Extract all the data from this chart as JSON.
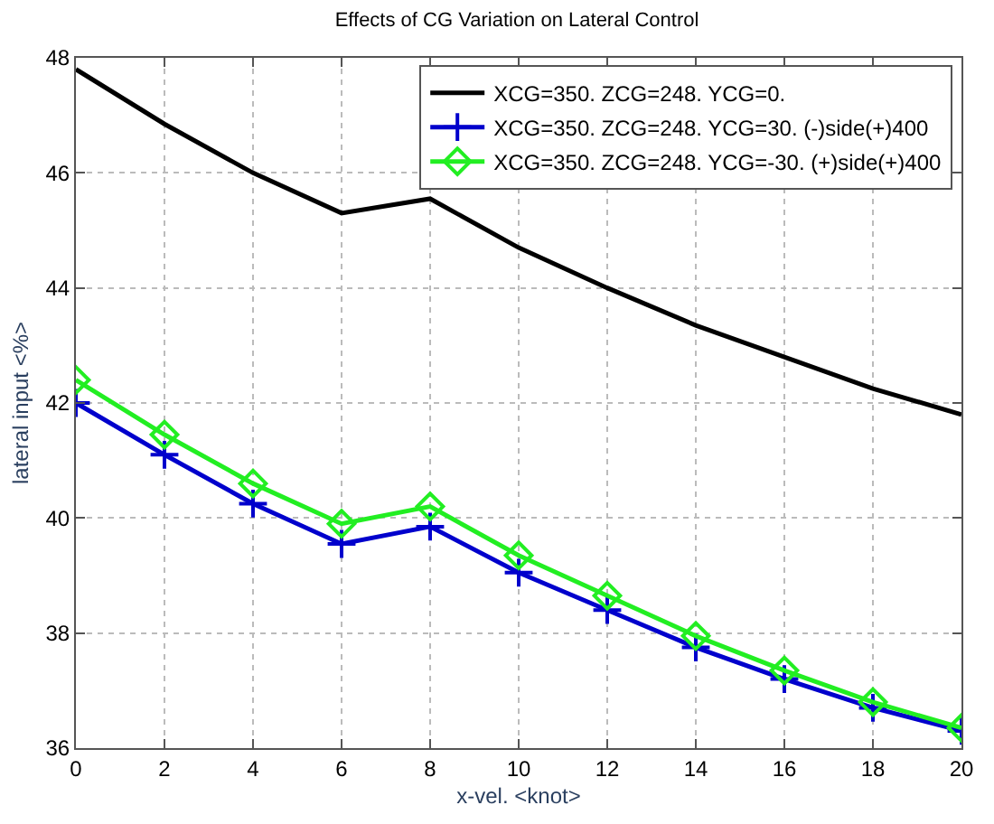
{
  "chart_data": {
    "type": "line",
    "title": "Effects of CG Variation on Lateral Control",
    "xlabel": "x-vel. <knot>",
    "ylabel": "lateral input <%>",
    "x": [
      0,
      2,
      4,
      6,
      8,
      10,
      12,
      14,
      16,
      18,
      20
    ],
    "series": [
      {
        "name": "XCG=350. ZCG=248. YCG=0.",
        "color": "#000000",
        "marker": "none",
        "values": [
          47.8,
          46.85,
          46.0,
          45.3,
          45.55,
          44.7,
          44.0,
          43.35,
          42.8,
          42.25,
          41.8
        ]
      },
      {
        "name": "XCG=350. ZCG=248. YCG=30. (-)side(+)400",
        "color": "#0000cc",
        "marker": "cross",
        "values": [
          42.0,
          41.1,
          40.25,
          39.55,
          39.85,
          39.05,
          38.4,
          37.75,
          37.2,
          36.7,
          36.3
        ]
      },
      {
        "name": "XCG=350. ZCG=248. YCG=-30. (+)side(+)400",
        "color": "#22ee22",
        "marker": "diamond",
        "values": [
          42.4,
          41.45,
          40.6,
          39.9,
          40.2,
          39.35,
          38.65,
          37.95,
          37.35,
          36.8,
          36.35
        ]
      }
    ],
    "xlim": [
      0,
      20
    ],
    "xticks": [
      0,
      2,
      4,
      6,
      8,
      10,
      12,
      14,
      16,
      18,
      20
    ],
    "ylim": [
      36,
      48
    ],
    "yticks": [
      36,
      38,
      40,
      42,
      44,
      46,
      48
    ],
    "grid": true,
    "legend": "top right",
    "line_style": "solid"
  }
}
